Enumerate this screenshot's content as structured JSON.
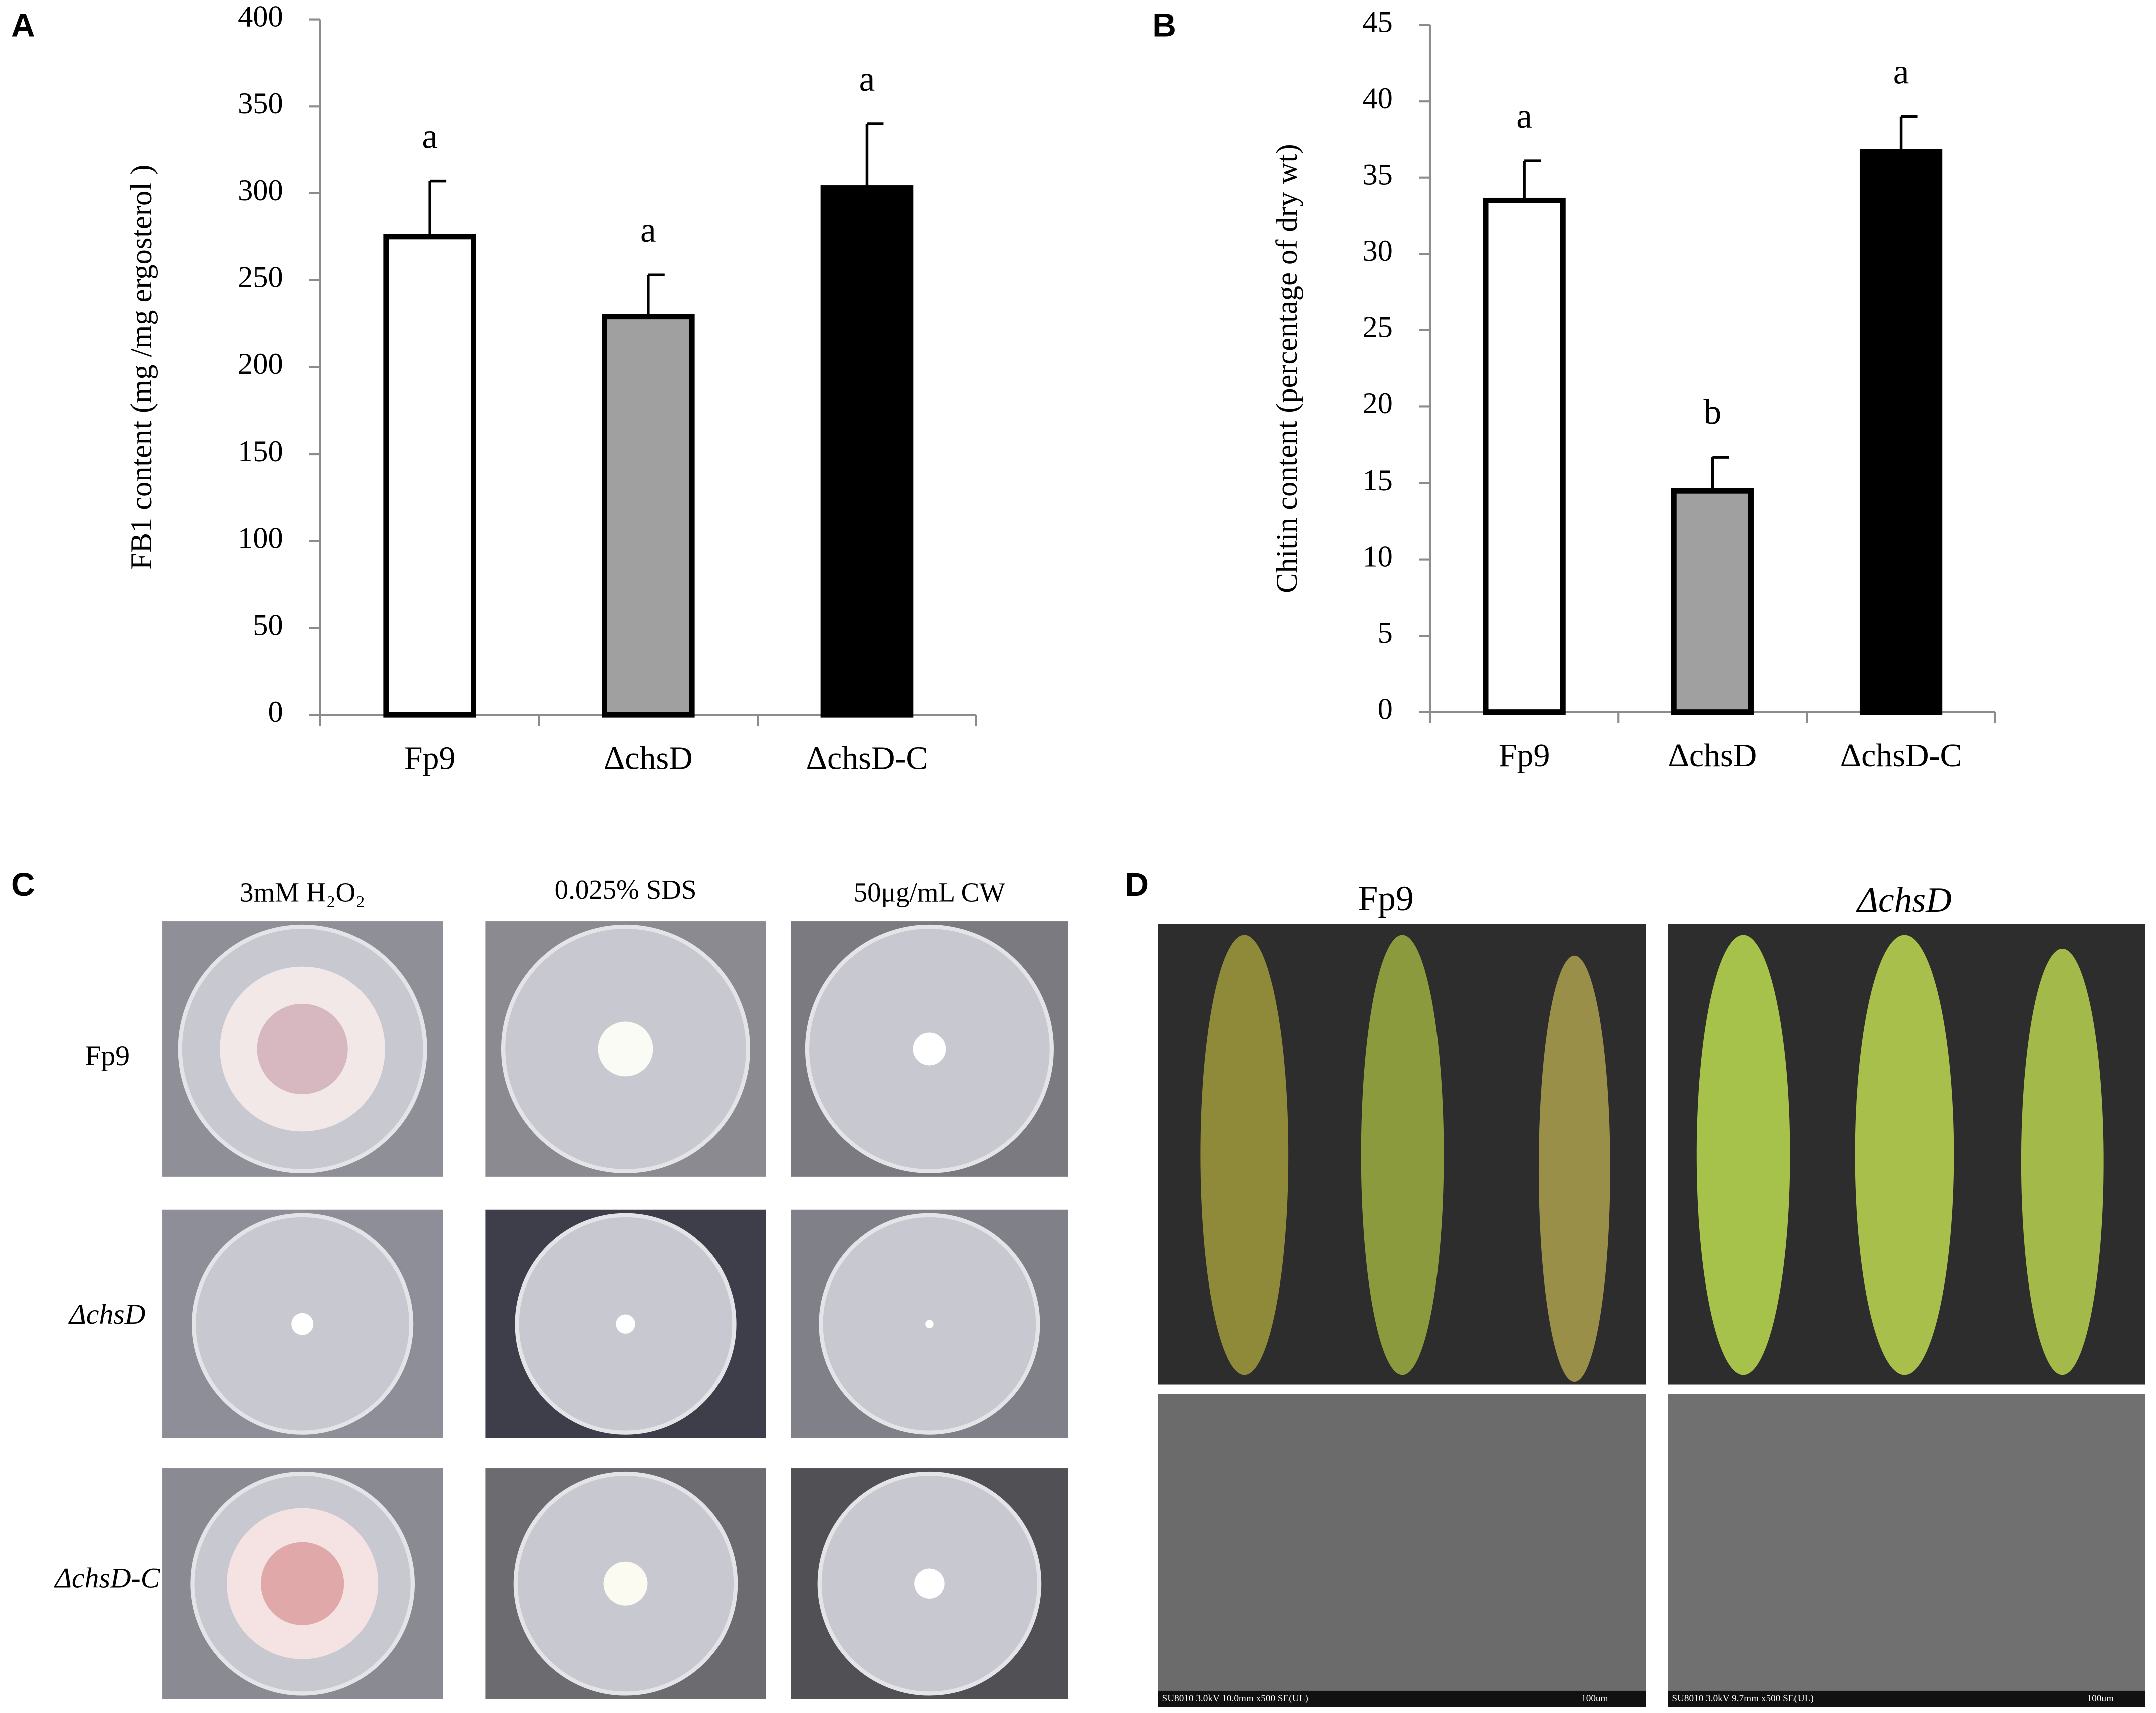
{
  "chart_data": [
    {
      "type": "bar",
      "panel": "A",
      "y_label": "FB1 content (mg /mg ergosterol )",
      "categories": [
        "Fp9",
        "ΔchsD",
        "ΔchsD-C"
      ],
      "values": [
        275,
        229,
        303
      ],
      "errors": [
        32,
        24,
        37
      ],
      "letters": [
        "a",
        "a",
        "a"
      ],
      "colors": [
        "#ffffff",
        "#a0a0a0",
        "#000000"
      ],
      "ylim": [
        0,
        400
      ],
      "yticks": [
        0,
        50,
        100,
        150,
        200,
        250,
        300,
        350,
        400
      ]
    },
    {
      "type": "bar",
      "panel": "B",
      "y_label": "Chitin content  (percentage of dry wt)",
      "categories": [
        "Fp9",
        "ΔchsD",
        "ΔchsD-C"
      ],
      "values": [
        33.5,
        14.5,
        36.7
      ],
      "errors": [
        2.6,
        2.2,
        2.3
      ],
      "letters": [
        "a",
        "b",
        "a"
      ],
      "colors": [
        "#ffffff",
        "#a0a0a0",
        "#000000"
      ],
      "ylim": [
        0,
        45
      ],
      "yticks": [
        0,
        5,
        10,
        15,
        20,
        25,
        30,
        35,
        40,
        45
      ]
    }
  ],
  "panel_c": {
    "label": "C",
    "columns": [
      "3mM H₂O₂",
      "0.025% SDS",
      "50μg/mL CW"
    ],
    "rows": [
      "Fp9",
      "ΔchsD",
      "ΔchsD-C"
    ]
  },
  "panel_d": {
    "label": "D",
    "columns": [
      "Fp9",
      "ΔchsD"
    ],
    "sem_captions": [
      "SU8010 3.0kV 10.0mm x500 SE(UL)",
      "SU8010 3.0kV 9.7mm x500 SE(UL)"
    ],
    "scale_bar": "100um"
  }
}
